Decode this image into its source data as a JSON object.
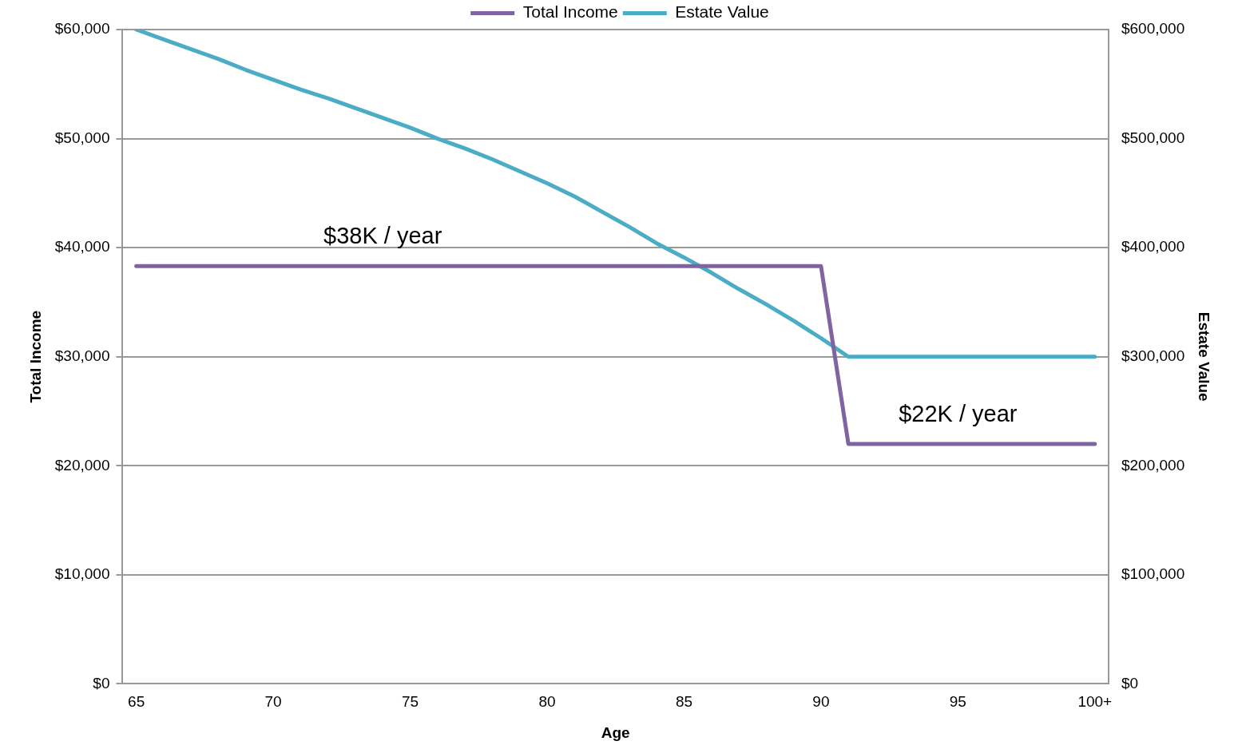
{
  "chart_data": {
    "type": "line",
    "xlabel": "Age",
    "ylabel": "Total Income",
    "y2label": "Estate Value",
    "x": [
      65,
      66,
      67,
      68,
      69,
      70,
      71,
      72,
      73,
      74,
      75,
      76,
      77,
      78,
      79,
      80,
      81,
      82,
      83,
      84,
      85,
      86,
      87,
      88,
      89,
      90,
      91,
      92,
      93,
      94,
      95,
      96,
      97,
      98,
      99,
      100
    ],
    "series": [
      {
        "name": "Total Income",
        "color": "#8064a2",
        "values": [
          38300,
          38300,
          38300,
          38300,
          38300,
          38300,
          38300,
          38300,
          38300,
          38300,
          38300,
          38300,
          38300,
          38300,
          38300,
          38300,
          38300,
          38300,
          38300,
          38300,
          38300,
          38300,
          38300,
          38300,
          38300,
          38300,
          22000,
          22000,
          22000,
          22000,
          22000,
          22000,
          22000,
          22000,
          22000,
          22000
        ]
      },
      {
        "name": "Estate Value",
        "color": "#4bacc6",
        "axis": "y2",
        "values": [
          600000,
          591000,
          582000,
          573000,
          563000,
          554000,
          545000,
          537000,
          528000,
          519000,
          510000,
          500000,
          491000,
          481000,
          470000,
          459000,
          447000,
          433000,
          419000,
          404000,
          391000,
          377000,
          362000,
          348000,
          333000,
          317000,
          300000,
          300000,
          300000,
          300000,
          300000,
          300000,
          300000,
          300000,
          300000,
          300000
        ]
      }
    ],
    "xlim": [
      64.5,
      100.5
    ],
    "xticks": [
      65,
      70,
      75,
      80,
      85,
      90,
      95,
      {
        "value": 100,
        "label": "100+"
      }
    ],
    "ylim": [
      0,
      60000
    ],
    "yticks": [
      {
        "value": 0,
        "label": "$0"
      },
      {
        "value": 10000,
        "label": "$10,000"
      },
      {
        "value": 20000,
        "label": "$20,000"
      },
      {
        "value": 30000,
        "label": "$30,000"
      },
      {
        "value": 40000,
        "label": "$40,000"
      },
      {
        "value": 50000,
        "label": "$50,000"
      },
      {
        "value": 60000,
        "label": "$60,000"
      }
    ],
    "y2lim": [
      0,
      600000
    ],
    "y2ticks": [
      {
        "value": 0,
        "label": "$0"
      },
      {
        "value": 100000,
        "label": "$100,000"
      },
      {
        "value": 200000,
        "label": "$200,000"
      },
      {
        "value": 300000,
        "label": "$300,000"
      },
      {
        "value": 400000,
        "label": "$400,000"
      },
      {
        "value": 500000,
        "label": "$500,000"
      },
      {
        "value": 600000,
        "label": "$600,000"
      }
    ],
    "annotations": [
      {
        "text": "$38K / year",
        "x": 74,
        "y": 38300
      },
      {
        "text": "$22K / year",
        "x": 95,
        "y": 22000
      }
    ],
    "grid": "y",
    "legend": "top",
    "marker": "none",
    "line_style": "solid"
  }
}
